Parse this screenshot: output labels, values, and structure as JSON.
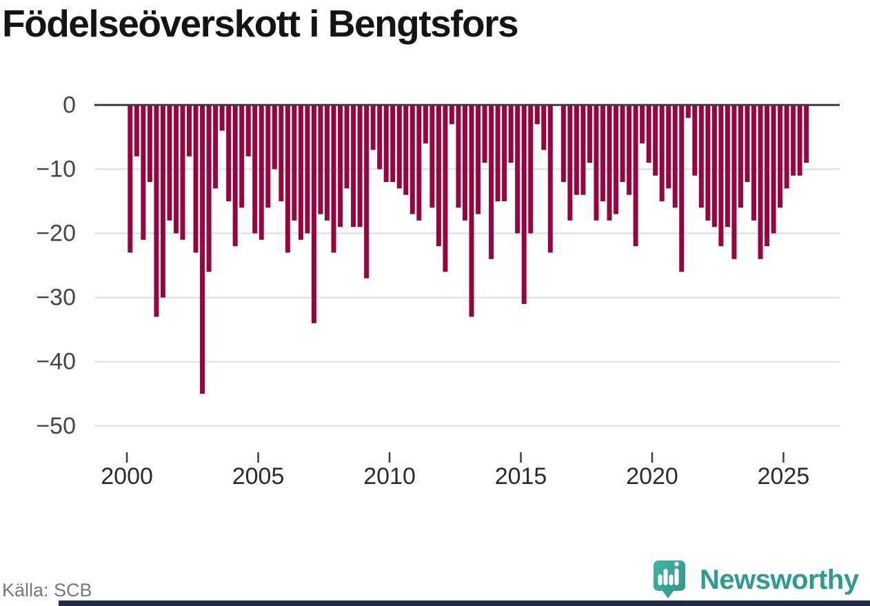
{
  "title": "Födelseöverskott i Bengtsfors",
  "source": "Källa: SCB",
  "logo": {
    "text": "Newsworthy"
  },
  "colors": {
    "bar": "#98043d",
    "grid": "#e3e3e3",
    "zero_line": "#3d3d3d",
    "axis_label": "#454545",
    "x_label": "#2b2b2b",
    "teal_icon": "#36a195",
    "teal_text": "#2f9a92",
    "footer_bar": "#232c47"
  },
  "chart_data": {
    "type": "bar",
    "title": "Födelseöverskott i Bengtsfors",
    "source": "Källa: SCB",
    "grid": true,
    "legend": false,
    "ylim": [
      -50,
      0
    ],
    "y_ticks": [
      0,
      -10,
      -20,
      -30,
      -40,
      -50
    ],
    "y_tick_labels": [
      "0",
      "−10",
      "−20",
      "−30",
      "−40",
      "−50"
    ],
    "x_tick_labels": [
      "2000",
      "2005",
      "2010",
      "2015",
      "2020",
      "2025"
    ],
    "x_tick_years": [
      2000,
      2005,
      2010,
      2015,
      2020,
      2025
    ],
    "start_quarter": "2000-Q1",
    "end_quarter": "2025-Q4",
    "series": [
      {
        "name": "Födelseöverskott",
        "freq": "quarterly",
        "values": [
          -23,
          -8,
          -21,
          -12,
          -33,
          -30,
          -18,
          -20,
          -21,
          -8,
          -23,
          -45,
          -26,
          -13,
          -4,
          -15,
          -22,
          -16,
          -8,
          -20,
          -21,
          -16,
          -10,
          -15,
          -23,
          -18,
          -21,
          -20,
          -34,
          -17,
          -18,
          -23,
          -19,
          -13,
          -19,
          -19,
          -27,
          -7,
          -10,
          -12,
          -12,
          -13,
          -14,
          -17,
          -18,
          -6,
          -16,
          -22,
          -26,
          -3,
          -16,
          -18,
          -33,
          -17,
          -9,
          -24,
          -15,
          -15,
          -9,
          -20,
          -31,
          -20,
          -3,
          -7,
          -23,
          0,
          -12,
          -18,
          -14,
          -14,
          -9,
          -18,
          -15,
          -18,
          -17,
          -12,
          -14,
          -22,
          -6,
          -9,
          -11,
          -15,
          -13,
          -16,
          -26,
          -2,
          -11,
          -16,
          -18,
          -19,
          -22,
          -19,
          -24,
          -16,
          -12,
          -18,
          -24,
          -22,
          -20,
          -16,
          -13,
          -11,
          -11,
          -9
        ]
      }
    ]
  }
}
